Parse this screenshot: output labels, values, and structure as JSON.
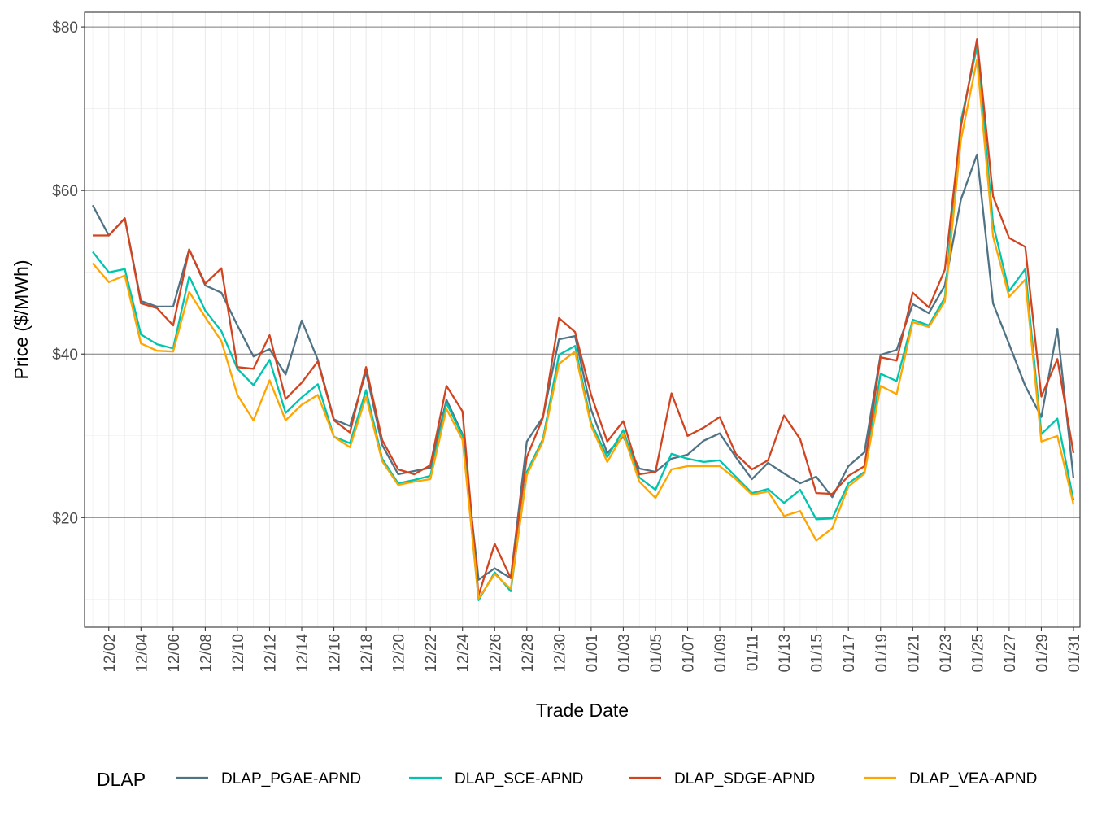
{
  "chart_data": {
    "type": "line",
    "xlabel": "Trade Date",
    "ylabel": "Price ($/MWh)",
    "ylim": [
      6.6,
      81.8
    ],
    "y_ticks": [
      20,
      40,
      60,
      80
    ],
    "y_tick_labels": [
      "$20",
      "$40",
      "$60",
      "$80"
    ],
    "grid": true,
    "legend": {
      "title": "DLAP",
      "placement": "bottom"
    },
    "x": [
      "12/01",
      "12/02",
      "12/03",
      "12/04",
      "12/05",
      "12/06",
      "12/07",
      "12/08",
      "12/09",
      "12/10",
      "12/11",
      "12/12",
      "12/13",
      "12/14",
      "12/15",
      "12/16",
      "12/17",
      "12/18",
      "12/19",
      "12/20",
      "12/21",
      "12/22",
      "12/23",
      "12/24",
      "12/25",
      "12/26",
      "12/27",
      "12/28",
      "12/29",
      "12/30",
      "12/31",
      "01/01",
      "01/02",
      "01/03",
      "01/04",
      "01/05",
      "01/06",
      "01/07",
      "01/08",
      "01/09",
      "01/10",
      "01/11",
      "01/12",
      "01/13",
      "01/14",
      "01/15",
      "01/16",
      "01/17",
      "01/18",
      "01/19",
      "01/20",
      "01/21",
      "01/22",
      "01/23",
      "01/24",
      "01/25",
      "01/26",
      "01/27",
      "01/28",
      "01/29",
      "01/30",
      "01/31"
    ],
    "x_tick_labels": [
      "12/02",
      "12/04",
      "12/06",
      "12/08",
      "12/10",
      "12/12",
      "12/14",
      "12/16",
      "12/18",
      "12/20",
      "12/22",
      "12/24",
      "12/26",
      "12/28",
      "12/30",
      "01/01",
      "01/03",
      "01/05",
      "01/07",
      "01/09",
      "01/11",
      "01/13",
      "01/15",
      "01/17",
      "01/19",
      "01/21",
      "01/23",
      "01/25",
      "01/27",
      "01/29",
      "01/31"
    ],
    "series": [
      {
        "name": "DLAP_PGAE-APND",
        "color": "#4F7385",
        "values": [
          58.2,
          54.5,
          56.6,
          46.5,
          45.8,
          45.8,
          52.8,
          48.4,
          47.5,
          43.5,
          39.7,
          40.6,
          37.5,
          44.1,
          39.3,
          32.0,
          31.2,
          37.8,
          28.9,
          25.3,
          25.7,
          26.1,
          34.4,
          30.2,
          12.4,
          13.8,
          12.6,
          29.3,
          32.3,
          41.8,
          42.2,
          33.2,
          27.9,
          29.9,
          26.0,
          25.6,
          27.2,
          27.7,
          29.4,
          30.3,
          27.4,
          24.7,
          26.7,
          25.4,
          24.2,
          25.0,
          22.5,
          26.3,
          28.0,
          39.9,
          40.5,
          46.1,
          45.0,
          48.4,
          58.9,
          64.4,
          46.2,
          41.2,
          36.1,
          32.3,
          43.1,
          24.8
        ]
      },
      {
        "name": "DLAP_SCE-APND",
        "color": "#00C5AE",
        "values": [
          52.5,
          50.0,
          50.4,
          42.4,
          41.2,
          40.7,
          49.5,
          45.3,
          42.8,
          38.2,
          36.2,
          39.3,
          32.8,
          34.7,
          36.3,
          29.9,
          29.1,
          35.6,
          27.2,
          24.2,
          24.6,
          25.1,
          34.0,
          30.0,
          9.9,
          13.3,
          11.0,
          25.6,
          29.6,
          39.9,
          41.0,
          31.6,
          27.4,
          30.7,
          24.9,
          23.4,
          27.8,
          27.2,
          26.8,
          27.0,
          25.0,
          23.0,
          23.5,
          21.8,
          23.4,
          19.8,
          19.9,
          24.2,
          25.6,
          37.6,
          36.7,
          44.2,
          43.5,
          46.9,
          68.5,
          77.6,
          55.9,
          47.7,
          50.4,
          30.2,
          32.1,
          22.1
        ]
      },
      {
        "name": "DLAP_SDGE-APND",
        "color": "#D2441F",
        "values": [
          54.5,
          54.5,
          56.6,
          46.2,
          45.6,
          43.5,
          52.8,
          48.6,
          50.5,
          38.4,
          38.2,
          42.3,
          34.5,
          36.5,
          39.1,
          31.9,
          30.4,
          38.4,
          29.5,
          25.9,
          25.3,
          26.4,
          36.1,
          33.0,
          10.5,
          16.8,
          12.6,
          27.4,
          32.2,
          44.4,
          42.7,
          35.0,
          29.3,
          31.8,
          25.3,
          25.6,
          35.2,
          30.0,
          31.0,
          32.3,
          27.8,
          25.9,
          27.0,
          32.5,
          29.6,
          23.0,
          22.9,
          25.1,
          26.3,
          39.6,
          39.2,
          47.5,
          45.7,
          50.3,
          67.8,
          78.5,
          59.3,
          54.2,
          53.1,
          34.8,
          39.4,
          27.9
        ]
      },
      {
        "name": "DLAP_VEA-APND",
        "color": "#FFA500",
        "values": [
          51.1,
          48.8,
          49.6,
          41.3,
          40.4,
          40.3,
          47.6,
          44.5,
          41.6,
          35.0,
          31.9,
          36.8,
          31.9,
          33.8,
          35.0,
          29.9,
          28.6,
          34.8,
          26.9,
          24.0,
          24.4,
          24.7,
          33.3,
          29.5,
          10.1,
          13.1,
          11.3,
          25.2,
          29.3,
          38.8,
          40.3,
          31.2,
          26.8,
          30.2,
          24.4,
          22.4,
          25.9,
          26.3,
          26.3,
          26.3,
          24.7,
          22.8,
          23.2,
          20.2,
          20.8,
          17.2,
          18.7,
          23.8,
          25.4,
          36.1,
          35.1,
          43.9,
          43.3,
          46.4,
          66.2,
          76.0,
          54.4,
          47.0,
          49.1,
          29.3,
          30.0,
          21.6
        ]
      }
    ]
  }
}
